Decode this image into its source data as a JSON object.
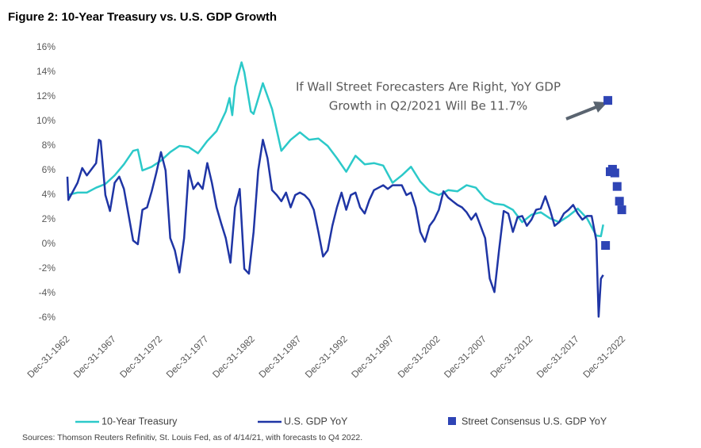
{
  "chart_data": {
    "type": "line",
    "title": "Figure 2: 10-Year Treasury vs. U.S. GDP Growth",
    "annotation": [
      "If Wall Street Forecasters Are Right, YoY GDP",
      "Growth in Q2/2021 Will Be 11.7%"
    ],
    "source": "Sources: Thomson Reuters Refinitiv, St. Louis Fed, as of 4/14/21, with forecasts to Q4 2022.",
    "xlim": [
      1962.9,
      2023.0
    ],
    "xticks": [
      {
        "value": 1962.99,
        "label": "Dec-31-1962"
      },
      {
        "value": 1967.99,
        "label": "Dec-31-1967"
      },
      {
        "value": 1972.99,
        "label": "Dec-31-1972"
      },
      {
        "value": 1977.99,
        "label": "Dec-31-1977"
      },
      {
        "value": 1982.99,
        "label": "Dec-31-1982"
      },
      {
        "value": 1987.99,
        "label": "Dec-31-1987"
      },
      {
        "value": 1992.99,
        "label": "Dec-31-1992"
      },
      {
        "value": 1997.99,
        "label": "Dec-31-1997"
      },
      {
        "value": 2002.99,
        "label": "Dec-31-2002"
      },
      {
        "value": 2007.99,
        "label": "Dec-31-2007"
      },
      {
        "value": 2012.99,
        "label": "Dec-31-2012"
      },
      {
        "value": 2017.99,
        "label": "Dec-31-2017"
      },
      {
        "value": 2022.99,
        "label": "Dec-31-2022"
      }
    ],
    "ylim": [
      -6,
      16
    ],
    "yticks": [
      {
        "value": -6,
        "label": "-6%"
      },
      {
        "value": -4,
        "label": "-4%"
      },
      {
        "value": -2,
        "label": "-2%"
      },
      {
        "value": 0,
        "label": "0%"
      },
      {
        "value": 2,
        "label": "2%"
      },
      {
        "value": 4,
        "label": "4%"
      },
      {
        "value": 6,
        "label": "6%"
      },
      {
        "value": 8,
        "label": "8%"
      },
      {
        "value": 10,
        "label": "10%"
      },
      {
        "value": 12,
        "label": "12%"
      },
      {
        "value": 14,
        "label": "14%"
      },
      {
        "value": 16,
        "label": "16%"
      }
    ],
    "series": [
      {
        "name": "10-Year Treasury",
        "type": "line",
        "color": "#2cc9c9",
        "x": [
          1962.9,
          1964,
          1965,
          1966,
          1967,
          1968,
          1969,
          1970,
          1970.5,
          1971,
          1972,
          1973,
          1974,
          1975,
          1976,
          1977,
          1978,
          1979,
          1980,
          1980.4,
          1980.7,
          1981,
          1981.7,
          1982,
          1982.7,
          1983,
          1984,
          1985,
          1986,
          1987,
          1988,
          1989,
          1990,
          1991,
          1992,
          1993,
          1994,
          1995,
          1996,
          1997,
          1998,
          1999,
          2000,
          2001,
          2002,
          2003,
          2004,
          2005,
          2006,
          2007,
          2008,
          2009,
          2010,
          2011,
          2012,
          2013,
          2014,
          2015,
          2016,
          2017,
          2018,
          2019,
          2020,
          2020.5,
          2020.75
        ],
        "values": [
          4.0,
          4.2,
          4.2,
          4.6,
          4.9,
          5.6,
          6.5,
          7.6,
          7.7,
          6.0,
          6.3,
          6.8,
          7.5,
          8.0,
          7.9,
          7.4,
          8.4,
          9.2,
          10.8,
          11.9,
          10.5,
          12.8,
          14.8,
          14.0,
          10.8,
          10.6,
          13.1,
          11.0,
          7.6,
          8.5,
          9.1,
          8.5,
          8.6,
          8.0,
          7.0,
          5.9,
          7.2,
          6.5,
          6.6,
          6.4,
          5.0,
          5.6,
          6.3,
          5.1,
          4.3,
          4.0,
          4.4,
          4.3,
          4.8,
          4.6,
          3.7,
          3.3,
          3.2,
          2.8,
          1.8,
          2.4,
          2.6,
          2.1,
          1.8,
          2.3,
          2.9,
          2.1,
          0.7,
          0.65,
          1.6
        ]
      },
      {
        "name": "U.S. GDP YoY",
        "type": "line",
        "color": "#1f35a5",
        "x": [
          1962.9,
          1963,
          1964,
          1964.5,
          1965,
          1966,
          1966.3,
          1966.5,
          1967,
          1967.5,
          1968,
          1968.5,
          1969,
          1970,
          1970.5,
          1971,
          1971.5,
          1972,
          1972.5,
          1973,
          1973.5,
          1974,
          1974.5,
          1975,
          1975.5,
          1976,
          1976.5,
          1977,
          1977.5,
          1978,
          1978.5,
          1979,
          1979.5,
          1980,
          1980.5,
          1981,
          1981.5,
          1982,
          1982.5,
          1983,
          1983.5,
          1984,
          1984.5,
          1985,
          1985.5,
          1986,
          1986.5,
          1987,
          1987.5,
          1988,
          1988.5,
          1989,
          1989.5,
          1990,
          1990.5,
          1991,
          1991.5,
          1992,
          1992.5,
          1993,
          1993.5,
          1994,
          1994.5,
          1995,
          1995.5,
          1996,
          1996.5,
          1997,
          1997.5,
          1998,
          1998.5,
          1999,
          1999.5,
          2000,
          2000.5,
          2001,
          2001.5,
          2002,
          2002.5,
          2003,
          2003.5,
          2004,
          2004.5,
          2005,
          2005.5,
          2006,
          2006.5,
          2007,
          2007.5,
          2008,
          2008.5,
          2009,
          2009.5,
          2010,
          2010.5,
          2011,
          2011.5,
          2012,
          2012.5,
          2013,
          2013.5,
          2014,
          2014.5,
          2015,
          2015.5,
          2016,
          2016.5,
          2017,
          2017.5,
          2018,
          2018.5,
          2019,
          2019.5,
          2020,
          2020.25,
          2020.5,
          2020.75
        ],
        "values": [
          5.5,
          3.6,
          5.0,
          6.2,
          5.6,
          6.6,
          8.5,
          8.4,
          4.0,
          2.7,
          5.0,
          5.5,
          4.5,
          0.3,
          0.0,
          2.8,
          3.0,
          4.3,
          5.8,
          7.5,
          6.0,
          0.5,
          -0.5,
          -2.3,
          0.5,
          6.0,
          4.5,
          5.0,
          4.5,
          6.6,
          5.0,
          3.0,
          1.7,
          0.5,
          -1.5,
          3.0,
          4.5,
          -2.0,
          -2.4,
          1.0,
          6.0,
          8.5,
          7.0,
          4.4,
          4.0,
          3.5,
          4.2,
          3.0,
          4.0,
          4.2,
          4.0,
          3.6,
          2.8,
          1.0,
          -1.0,
          -0.5,
          1.5,
          3.0,
          4.2,
          2.8,
          4.0,
          4.2,
          3.0,
          2.5,
          3.6,
          4.4,
          4.6,
          4.8,
          4.5,
          4.8,
          4.8,
          4.8,
          4.0,
          4.2,
          3.0,
          1.0,
          0.2,
          1.5,
          2.0,
          2.8,
          4.3,
          3.8,
          3.5,
          3.2,
          3.0,
          2.6,
          2.0,
          2.5,
          1.5,
          0.5,
          -2.8,
          -3.9,
          -0.5,
          2.7,
          2.5,
          1.0,
          2.2,
          2.3,
          1.5,
          2.0,
          2.8,
          2.9,
          3.9,
          2.8,
          1.5,
          1.8,
          2.5,
          2.8,
          3.2,
          2.5,
          2.0,
          2.3,
          2.3,
          0.3,
          -5.9,
          -2.8,
          -2.5
        ]
      },
      {
        "name": "Street Consensus U.S. GDP YoY",
        "type": "scatter",
        "color": "#2e44b5",
        "x": [
          2021.0,
          2021.25,
          2021.5,
          2021.75,
          2022.0,
          2022.25,
          2022.5,
          2022.75
        ],
        "values": [
          -0.1,
          11.7,
          5.9,
          6.1,
          5.8,
          4.7,
          3.5,
          2.8
        ]
      }
    ]
  }
}
